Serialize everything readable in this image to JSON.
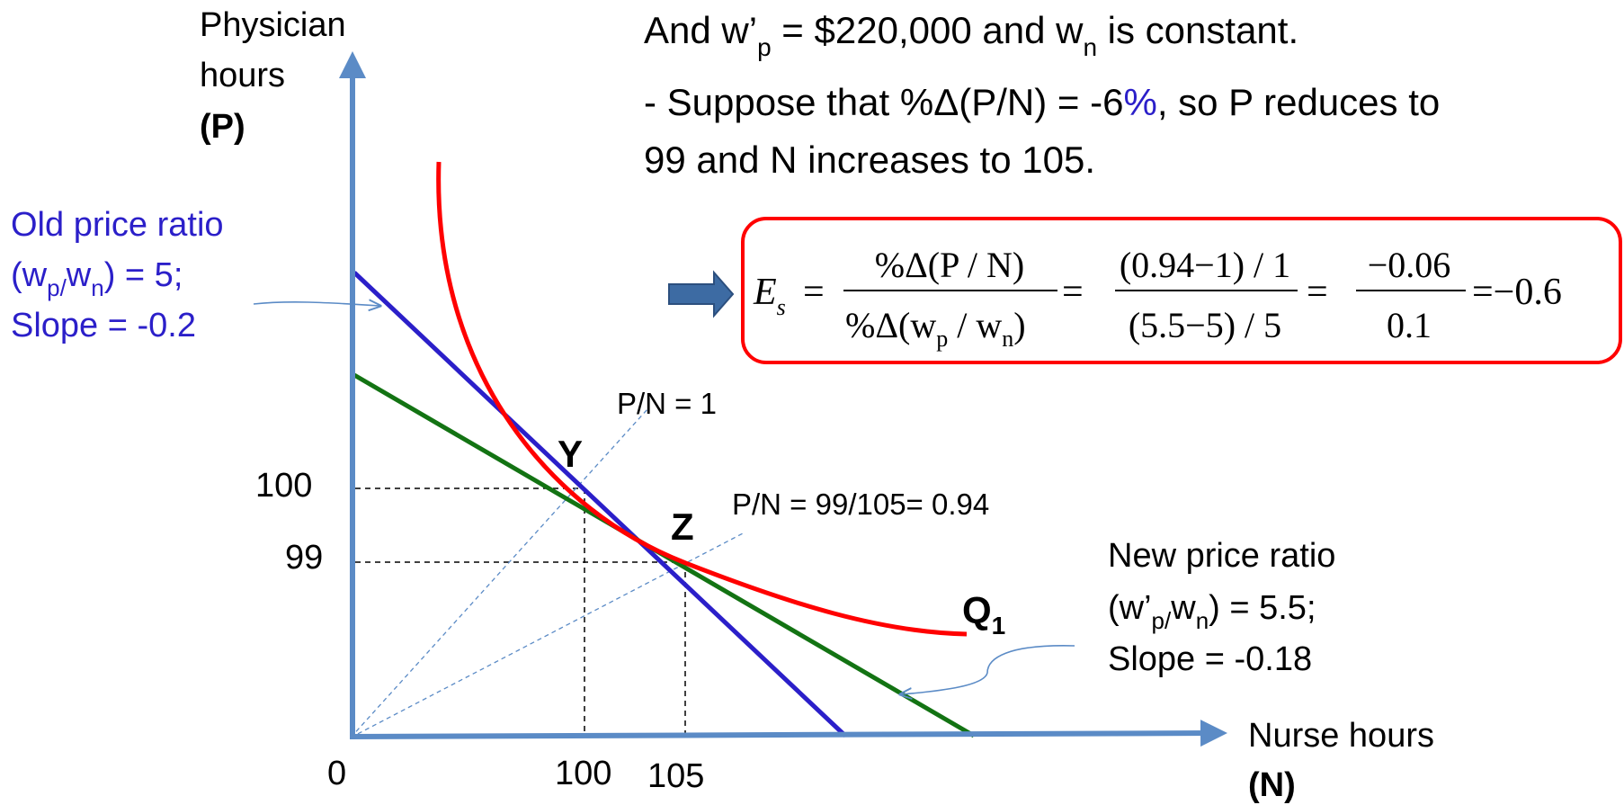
{
  "colors": {
    "axis": "#5b8bc6",
    "curve": "#ff0000",
    "old_line": "#2b1fc9",
    "new_line": "#137313",
    "ray": "#5b8bc6",
    "callout_arrow": "#5b8bc6",
    "formula_box_border": "#ff0000",
    "highlight_percent": "#2b1fc9"
  },
  "axes": {
    "y_label_line1": "Physician",
    "y_label_line2": "hours",
    "y_label_line3": "(P)",
    "x_label_line1": "Nurse hours",
    "x_label_line2": "(N)",
    "origin": "0",
    "y_ticks": [
      "100",
      "99"
    ],
    "x_ticks": [
      "100",
      "105"
    ]
  },
  "header": {
    "line1_a": "And w’",
    "line1_sub": "p",
    "line1_b": " = $220,000 and w",
    "line1_sub2": "n",
    "line1_c": " is constant.",
    "line2_a": "- Suppose that %Δ(P/N) = -6",
    "line2_pct": "%",
    "line2_b": ", so P reduces to",
    "line3": "99 and N increases to 105."
  },
  "old_ratio": {
    "line1": "Old price ratio",
    "line2_a": "(w",
    "line2_sub1": "p/",
    "line2_b": "w",
    "line2_sub2": "n",
    "line2_c": ") = 5;",
    "line3": "Slope = -0.2"
  },
  "new_ratio": {
    "line1": "New price ratio",
    "line2_a": "(w’",
    "line2_sub1": "p/",
    "line2_b": "w",
    "line2_sub2": "n",
    "line2_c": ") = 5.5;",
    "line3": "Slope = -0.18"
  },
  "points": {
    "y": "Y",
    "z": "Z",
    "q1": "Q",
    "q1_sub": "1"
  },
  "rays": {
    "ray1": "P/N = 1",
    "ray2": "P/N = 99/105= 0.94"
  },
  "formula": {
    "lhs": "E",
    "lhs_sub": "s",
    "eq": "=",
    "frac1_num": "%Δ(P / N)",
    "frac1_den_a": "%Δ(w",
    "frac1_den_sub1": "p",
    "frac1_den_b": " / w",
    "frac1_den_sub2": "n",
    "frac1_den_c": ")",
    "frac2_num": "(0.94−1) / 1",
    "frac2_den": "(5.5−5) / 5",
    "frac3_num": "−0.06",
    "frac3_den": "0.1",
    "result": "=−0.6"
  }
}
